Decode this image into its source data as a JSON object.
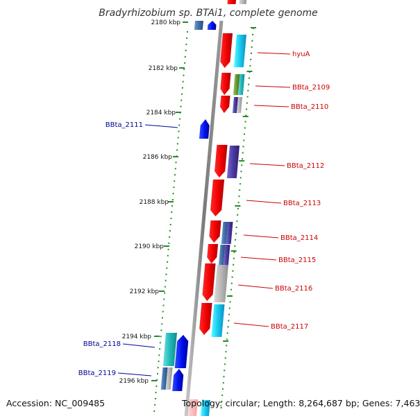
{
  "title": "Bradyrhizobium sp. BTAi1, complete genome",
  "accession": "Accession: NC_009485",
  "topology": "Topology: circular; Length: 8,264,687 bp; Genes: 7,463",
  "colors": {
    "forward_gene": "#ff0000",
    "reverse_gene": "#0000ee",
    "right_label": "#cc0000",
    "left_label": "#000099",
    "tick": "#228b22",
    "backbone": "#8a8a8a"
  },
  "scale_ticks": [
    "2180 kbp",
    "2182 kbp",
    "2184 kbp",
    "2186 kbp",
    "2188 kbp",
    "2190 kbp",
    "2192 kbp",
    "2194 kbp",
    "2196 kbp"
  ],
  "right_labels": [
    "hyuA",
    "BBta_2109",
    "BBta_2110",
    "BBta_2112",
    "BBta_2113",
    "BBta_2114",
    "BBta_2115",
    "BBta_2116",
    "BBta_2117"
  ],
  "left_labels": [
    "BBta_2111",
    "BBta_2118",
    "BBta_2119"
  ]
}
